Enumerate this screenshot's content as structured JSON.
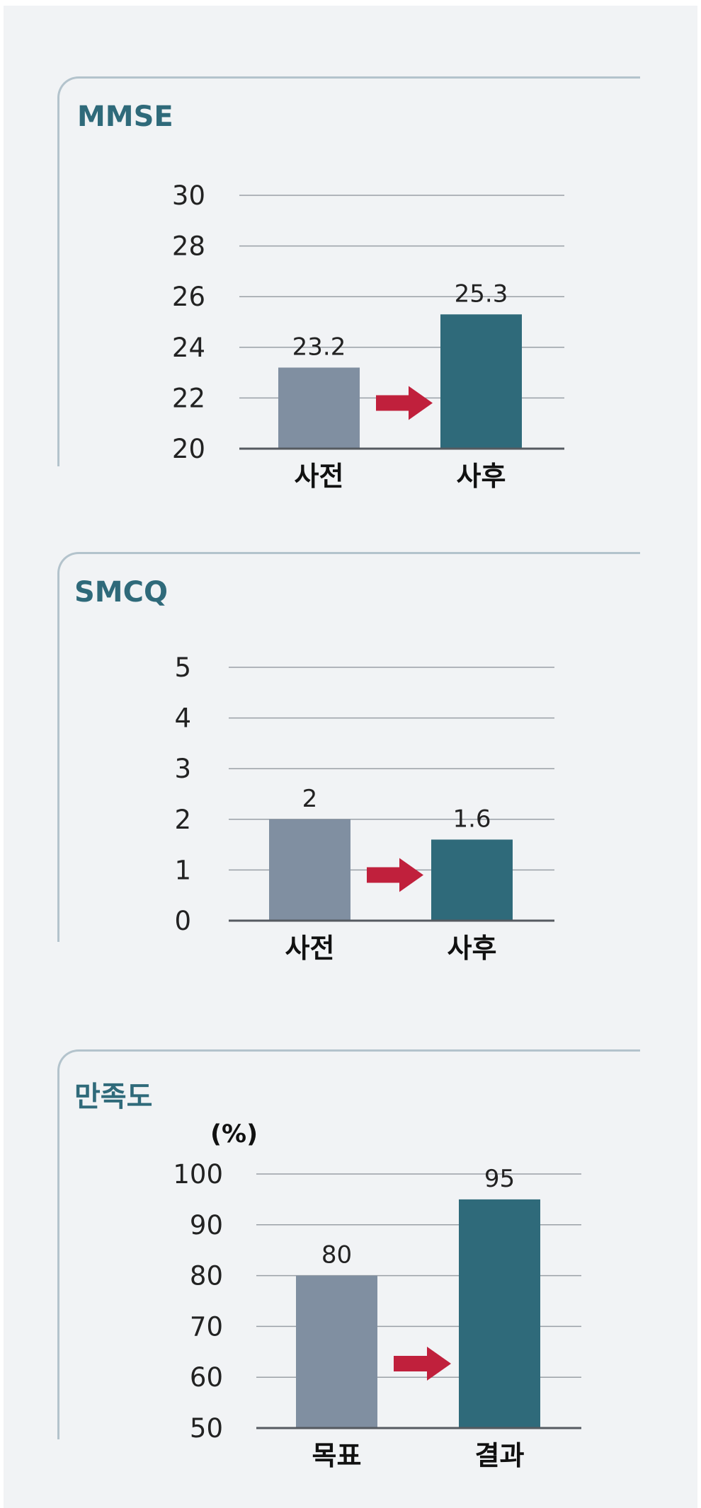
{
  "colors": {
    "before_bar": "#808fa1",
    "after_bar": "#2f6a7a",
    "arrow": "#c0203c",
    "title": "#2f6a7a",
    "frame": "#b3c3cc",
    "gridline": "#9aa0a6",
    "baseline": "#555a60",
    "background": "#f1f3f5"
  },
  "chart_data": [
    {
      "type": "bar",
      "title": "MMSE",
      "unit": "",
      "categories": [
        "사전",
        "사후"
      ],
      "values": [
        23.2,
        25.3
      ],
      "value_labels": [
        "23.2",
        "25.3"
      ],
      "ylim": [
        20,
        30
      ],
      "yticks": [
        20,
        22,
        24,
        26,
        28,
        30
      ],
      "grid": true,
      "arrow_between_bars": true,
      "legend": "none"
    },
    {
      "type": "bar",
      "title": "SMCQ",
      "unit": "",
      "categories": [
        "사전",
        "사후"
      ],
      "values": [
        2,
        1.6
      ],
      "value_labels": [
        "2",
        "1.6"
      ],
      "ylim": [
        0,
        5
      ],
      "yticks": [
        0,
        1,
        2,
        3,
        4,
        5
      ],
      "grid": true,
      "arrow_between_bars": true,
      "legend": "none"
    },
    {
      "type": "bar",
      "title": "만족도",
      "unit": "(%)",
      "categories": [
        "목표",
        "결과"
      ],
      "values": [
        80,
        95
      ],
      "value_labels": [
        "80",
        "95"
      ],
      "ylim": [
        50,
        100
      ],
      "yticks": [
        50,
        60,
        70,
        80,
        90,
        100
      ],
      "grid": true,
      "arrow_between_bars": true,
      "legend": "none"
    }
  ]
}
